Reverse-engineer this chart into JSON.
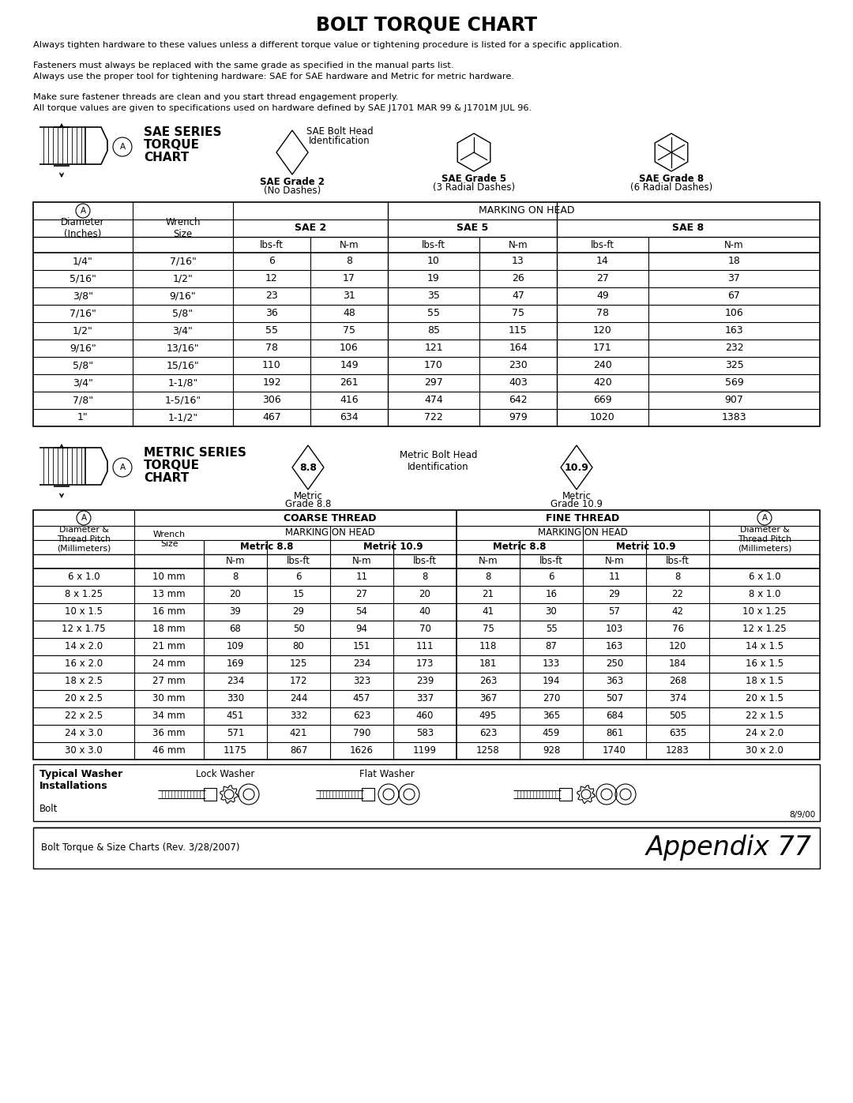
{
  "title": "BOLT TORQUE CHART",
  "intro_lines": [
    "Always tighten hardware to these values unless a different torque value or tightening procedure is listed for a specific application.",
    "Fasteners must always be replaced with the same grade as specified in the manual parts list.",
    "Always use the proper tool for tightening hardware: SAE for SAE hardware and Metric for metric hardware.",
    "Make sure fastener threads are clean and you start thread engagement properly.",
    "All torque values are given to specifications used on hardware defined by SAE J1701 MAR 99 & J1701M JUL 96."
  ],
  "sae_data": [
    [
      "1/4\"",
      "7/16\"",
      "6",
      "8",
      "10",
      "13",
      "14",
      "18"
    ],
    [
      "5/16\"",
      "1/2\"",
      "12",
      "17",
      "19",
      "26",
      "27",
      "37"
    ],
    [
      "3/8\"",
      "9/16\"",
      "23",
      "31",
      "35",
      "47",
      "49",
      "67"
    ],
    [
      "7/16\"",
      "5/8\"",
      "36",
      "48",
      "55",
      "75",
      "78",
      "106"
    ],
    [
      "1/2\"",
      "3/4\"",
      "55",
      "75",
      "85",
      "115",
      "120",
      "163"
    ],
    [
      "9/16\"",
      "13/16\"",
      "78",
      "106",
      "121",
      "164",
      "171",
      "232"
    ],
    [
      "5/8\"",
      "15/16\"",
      "110",
      "149",
      "170",
      "230",
      "240",
      "325"
    ],
    [
      "3/4\"",
      "1-1/8\"",
      "192",
      "261",
      "297",
      "403",
      "420",
      "569"
    ],
    [
      "7/8\"",
      "1-5/16\"",
      "306",
      "416",
      "474",
      "642",
      "669",
      "907"
    ],
    [
      "1\"",
      "1-1/2\"",
      "467",
      "634",
      "722",
      "979",
      "1020",
      "1383"
    ]
  ],
  "metric_data": [
    [
      "6 x 1.0",
      "10 mm",
      "8",
      "6",
      "11",
      "8",
      "8",
      "6",
      "11",
      "8",
      "6 x 1.0"
    ],
    [
      "8 x 1.25",
      "13 mm",
      "20",
      "15",
      "27",
      "20",
      "21",
      "16",
      "29",
      "22",
      "8 x 1.0"
    ],
    [
      "10 x 1.5",
      "16 mm",
      "39",
      "29",
      "54",
      "40",
      "41",
      "30",
      "57",
      "42",
      "10 x 1.25"
    ],
    [
      "12 x 1.75",
      "18 mm",
      "68",
      "50",
      "94",
      "70",
      "75",
      "55",
      "103",
      "76",
      "12 x 1.25"
    ],
    [
      "14 x 2.0",
      "21 mm",
      "109",
      "80",
      "151",
      "111",
      "118",
      "87",
      "163",
      "120",
      "14 x 1.5"
    ],
    [
      "16 x 2.0",
      "24 mm",
      "169",
      "125",
      "234",
      "173",
      "181",
      "133",
      "250",
      "184",
      "16 x 1.5"
    ],
    [
      "18 x 2.5",
      "27 mm",
      "234",
      "172",
      "323",
      "239",
      "263",
      "194",
      "363",
      "268",
      "18 x 1.5"
    ],
    [
      "20 x 2.5",
      "30 mm",
      "330",
      "244",
      "457",
      "337",
      "367",
      "270",
      "507",
      "374",
      "20 x 1.5"
    ],
    [
      "22 x 2.5",
      "34 mm",
      "451",
      "332",
      "623",
      "460",
      "495",
      "365",
      "684",
      "505",
      "22 x 1.5"
    ],
    [
      "24 x 3.0",
      "36 mm",
      "571",
      "421",
      "790",
      "583",
      "623",
      "459",
      "861",
      "635",
      "24 x 2.0"
    ],
    [
      "30 x 3.0",
      "46 mm",
      "1175",
      "867",
      "1626",
      "1199",
      "1258",
      "928",
      "1740",
      "1283",
      "30 x 2.0"
    ]
  ],
  "footer_left": "Bolt Torque & Size Charts (Rev. 3/28/2007)",
  "footer_right": "Appendix 77",
  "date_stamp": "8/9/00"
}
